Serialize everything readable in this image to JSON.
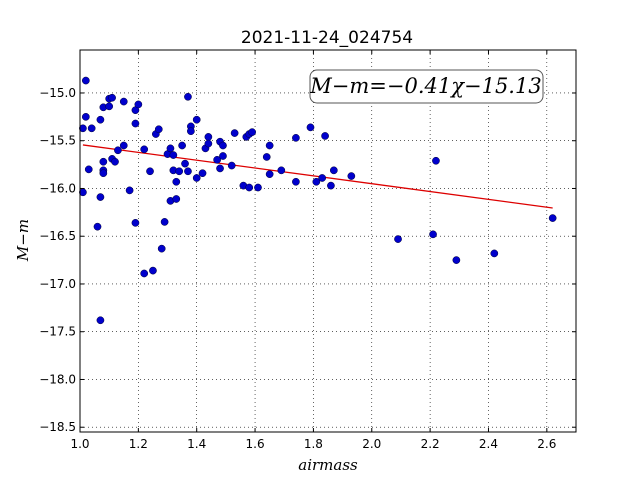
{
  "chart_data": {
    "type": "scatter",
    "title": "2021-11-24_024754",
    "xlabel": "airmass",
    "ylabel": "M−m",
    "xlim": [
      1.0,
      2.7
    ],
    "ylim": [
      -18.55,
      -14.55
    ],
    "y_inverted": true,
    "grid": true,
    "xticks": [
      "1.0",
      "1.2",
      "1.4",
      "1.6",
      "1.8",
      "2.0",
      "2.2",
      "2.4",
      "2.6"
    ],
    "xtick_values": [
      1.0,
      1.2,
      1.4,
      1.6,
      1.8,
      2.0,
      2.2,
      2.4,
      2.6
    ],
    "yticks": [
      "−15.0",
      "−15.5",
      "−16.0",
      "−16.5",
      "−17.0",
      "−17.5",
      "−18.0",
      "−18.5"
    ],
    "ytick_values": [
      -15.0,
      -15.5,
      -16.0,
      -16.5,
      -17.0,
      -17.5,
      -18.0,
      -18.5
    ],
    "annotation": "M−m=−0.41χ−15.13",
    "point_color": "#0000cc",
    "fit_color": "#dd0000",
    "fit": {
      "slope": -0.41,
      "intercept": -15.13,
      "x_range": [
        1.01,
        2.62
      ]
    },
    "points": [
      [
        1.01,
        -15.37
      ],
      [
        1.02,
        -14.87
      ],
      [
        1.02,
        -15.25
      ],
      [
        1.04,
        -15.37
      ],
      [
        1.01,
        -16.04
      ],
      [
        1.03,
        -15.8
      ],
      [
        1.06,
        -16.4
      ],
      [
        1.07,
        -15.28
      ],
      [
        1.07,
        -16.09
      ],
      [
        1.07,
        -17.38
      ],
      [
        1.08,
        -15.15
      ],
      [
        1.08,
        -15.72
      ],
      [
        1.08,
        -15.81
      ],
      [
        1.08,
        -15.84
      ],
      [
        1.1,
        -15.14
      ],
      [
        1.1,
        -15.06
      ],
      [
        1.11,
        -15.05
      ],
      [
        1.11,
        -15.69
      ],
      [
        1.12,
        -15.72
      ],
      [
        1.13,
        -15.6
      ],
      [
        1.15,
        -15.55
      ],
      [
        1.15,
        -15.09
      ],
      [
        1.17,
        -16.02
      ],
      [
        1.19,
        -16.36
      ],
      [
        1.19,
        -15.18
      ],
      [
        1.19,
        -15.32
      ],
      [
        1.2,
        -15.12
      ],
      [
        1.22,
        -15.59
      ],
      [
        1.22,
        -16.89
      ],
      [
        1.24,
        -15.82
      ],
      [
        1.25,
        -16.86
      ],
      [
        1.26,
        -15.43
      ],
      [
        1.27,
        -15.38
      ],
      [
        1.28,
        -16.63
      ],
      [
        1.29,
        -16.35
      ],
      [
        1.3,
        -15.64
      ],
      [
        1.31,
        -15.58
      ],
      [
        1.31,
        -16.13
      ],
      [
        1.32,
        -15.65
      ],
      [
        1.32,
        -15.81
      ],
      [
        1.33,
        -15.93
      ],
      [
        1.33,
        -16.11
      ],
      [
        1.34,
        -15.82
      ],
      [
        1.35,
        -15.55
      ],
      [
        1.36,
        -15.74
      ],
      [
        1.37,
        -15.82
      ],
      [
        1.37,
        -15.04
      ],
      [
        1.38,
        -15.35
      ],
      [
        1.38,
        -15.4
      ],
      [
        1.4,
        -15.28
      ],
      [
        1.4,
        -15.89
      ],
      [
        1.42,
        -15.84
      ],
      [
        1.43,
        -15.58
      ],
      [
        1.44,
        -15.46
      ],
      [
        1.44,
        -15.53
      ],
      [
        1.47,
        -15.7
      ],
      [
        1.48,
        -15.79
      ],
      [
        1.48,
        -15.51
      ],
      [
        1.49,
        -15.55
      ],
      [
        1.49,
        -15.66
      ],
      [
        1.52,
        -15.76
      ],
      [
        1.53,
        -15.42
      ],
      [
        1.56,
        -15.97
      ],
      [
        1.57,
        -15.46
      ],
      [
        1.58,
        -15.99
      ],
      [
        1.58,
        -15.43
      ],
      [
        1.59,
        -15.41
      ],
      [
        1.61,
        -15.99
      ],
      [
        1.64,
        -15.67
      ],
      [
        1.65,
        -15.85
      ],
      [
        1.65,
        -15.55
      ],
      [
        1.69,
        -15.81
      ],
      [
        1.74,
        -15.93
      ],
      [
        1.74,
        -15.47
      ],
      [
        1.79,
        -15.36
      ],
      [
        1.81,
        -15.93
      ],
      [
        1.83,
        -15.89
      ],
      [
        1.84,
        -15.45
      ],
      [
        1.86,
        -15.97
      ],
      [
        1.87,
        -15.81
      ],
      [
        1.93,
        -15.87
      ],
      [
        2.09,
        -16.53
      ],
      [
        2.21,
        -16.48
      ],
      [
        2.22,
        -15.71
      ],
      [
        2.29,
        -16.75
      ],
      [
        2.42,
        -16.68
      ],
      [
        2.62,
        -16.31
      ]
    ]
  }
}
